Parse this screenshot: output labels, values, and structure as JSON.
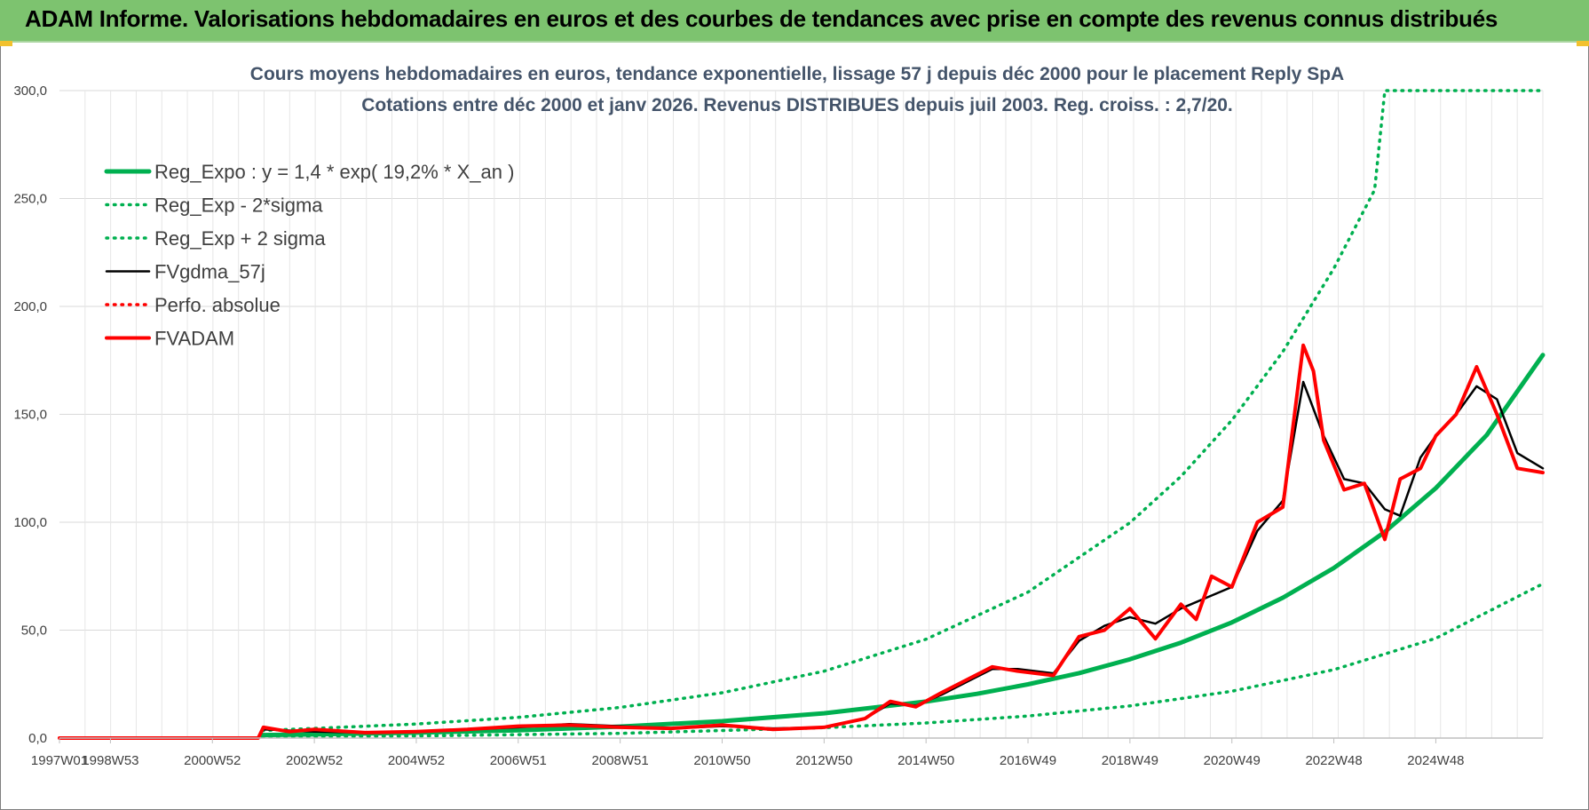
{
  "banner": {
    "title": "ADAM Informe. Valorisations hebdomadaires en euros et des courbes de tendances avec prise en compte des revenus connus distribués"
  },
  "colors": {
    "banner_bg": "#7dc36f",
    "green": "#00b050",
    "red": "#ff0000",
    "black": "#000000",
    "title": "#44546a",
    "grid": "#d9d9d9"
  },
  "chart_data": {
    "type": "line",
    "title": "Cours moyens hebdomadaires en euros, tendance exponentielle, lissage 57 j depuis déc 2000 pour le placement Reply SpA",
    "subtitle": "Cotations entre déc 2000 et janv 2026.  Revenus DISTRIBUES depuis juil 2003.  Reg. croiss. : 2,7/20.",
    "xlabel": "",
    "ylabel": "",
    "ylim": [
      0,
      300
    ],
    "y_ticks": [
      "0,0",
      "50,0",
      "100,0",
      "150,0",
      "200,0",
      "250,0",
      "300,0"
    ],
    "x_ticks": [
      "1997W01",
      "1998W53",
      "2000W52",
      "2002W52",
      "2004W52",
      "2006W51",
      "2008W51",
      "2010W50",
      "2012W50",
      "2014W50",
      "2016W49",
      "2018W49",
      "2020W49",
      "2022W48",
      "2024W48"
    ],
    "xlim": [
      1997.0,
      2026.1
    ],
    "grid": true,
    "legend_position": "top-left",
    "series": [
      {
        "name": "Reg_Expo : y = 1,4 * exp( 19,2% *  X_an )",
        "style": "solid",
        "color": "#00b050",
        "x": [
          2000.98,
          2002,
          2004,
          2006,
          2008,
          2010,
          2012,
          2014,
          2015,
          2016,
          2017,
          2018,
          2019,
          2020,
          2021,
          2022,
          2023,
          2024,
          2025,
          2026.1
        ],
        "y": [
          1.4,
          1.7,
          2.5,
          3.6,
          5.3,
          7.8,
          11.5,
          16.9,
          20.5,
          24.9,
          30.1,
          36.5,
          44.2,
          53.6,
          65.0,
          78.8,
          95.5,
          115.8,
          140.4,
          177.5
        ]
      },
      {
        "name": "Reg_Exp - 2*sigma",
        "style": "dotted",
        "color": "#00b050",
        "x": [
          2000.98,
          2004,
          2008,
          2012,
          2014,
          2016,
          2018,
          2020,
          2022,
          2024,
          2026.1
        ],
        "y": [
          0.6,
          1.0,
          2.2,
          4.8,
          7.0,
          10.2,
          14.9,
          21.7,
          31.7,
          46.2,
          71.5
        ]
      },
      {
        "name": "Reg_Exp + 2 sigma",
        "style": "dotted",
        "color": "#00b050",
        "x": [
          2000.98,
          2002,
          2004,
          2006,
          2008,
          2010,
          2012,
          2014,
          2016,
          2018,
          2019,
          2020,
          2021,
          2022,
          2022.8,
          2023,
          2026.1
        ],
        "y": [
          3.5,
          4.5,
          6.5,
          9.6,
          14.2,
          21.0,
          31.0,
          45.8,
          67.6,
          99.8,
          121.2,
          147.3,
          179.0,
          217.6,
          254.0,
          300.0,
          300.0
        ]
      },
      {
        "name": "FVgdma_57j",
        "style": "solid",
        "color": "#000000",
        "x": [
          1997.0,
          2000.9,
          2001.0,
          2001.5,
          2002,
          2003,
          2004,
          2005,
          2006,
          2007,
          2008,
          2009,
          2010,
          2011,
          2012,
          2012.8,
          2013.3,
          2013.8,
          2014.3,
          2014.8,
          2015.3,
          2015.8,
          2016.5,
          2017,
          2017.5,
          2018,
          2018.5,
          2019,
          2019.5,
          2020,
          2020.5,
          2021,
          2021.4,
          2021.8,
          2022.2,
          2022.6,
          2023,
          2023.3,
          2023.7,
          2024,
          2024.4,
          2024.8,
          2025.2,
          2025.6,
          2026.1
        ],
        "y": [
          0,
          0,
          4.0,
          3.5,
          3.0,
          2.5,
          3.0,
          4.0,
          5.0,
          6.5,
          5.5,
          4.5,
          5.5,
          4.5,
          5.0,
          9.0,
          16.0,
          15.0,
          20.0,
          26.0,
          32.0,
          32.0,
          30.0,
          45.0,
          52.0,
          56.0,
          53.0,
          60.0,
          65.0,
          70.0,
          96.0,
          110.0,
          165.0,
          140.0,
          120.0,
          118.0,
          106.0,
          103.0,
          130.0,
          140.0,
          150.0,
          163.0,
          157.0,
          132.0,
          125.0
        ]
      },
      {
        "name": "Perfo. absolue",
        "style": "dotted",
        "color": "#ff0000",
        "x": [],
        "y": []
      },
      {
        "name": "FVADAM",
        "style": "solid",
        "color": "#ff0000",
        "x": [
          1997.0,
          2000.9,
          2001.0,
          2001.5,
          2002,
          2003,
          2004,
          2005,
          2006,
          2007,
          2008,
          2009,
          2010,
          2011,
          2012,
          2012.8,
          2013.3,
          2013.8,
          2014.3,
          2014.8,
          2015.3,
          2015.8,
          2016.5,
          2017,
          2017.5,
          2018,
          2018.5,
          2019,
          2019.3,
          2019.6,
          2020,
          2020.5,
          2021,
          2021.4,
          2021.6,
          2021.8,
          2022.2,
          2022.6,
          2023,
          2023.3,
          2023.7,
          2024,
          2024.4,
          2024.8,
          2025.2,
          2025.6,
          2026.1
        ],
        "y": [
          0,
          0,
          5.0,
          3.0,
          4.0,
          2.5,
          3.0,
          4.0,
          5.5,
          6.0,
          5.0,
          4.5,
          6.0,
          4.0,
          5.0,
          9.0,
          17.0,
          14.5,
          21.0,
          27.0,
          33.0,
          31.0,
          29.0,
          47.0,
          50.0,
          60.0,
          46.0,
          62.0,
          55.0,
          75.0,
          70.0,
          100.0,
          107.0,
          182.0,
          170.0,
          138.0,
          115.0,
          118.0,
          92.0,
          120.0,
          125.0,
          140.0,
          150.0,
          172.0,
          150.0,
          125.0,
          123.0
        ]
      }
    ]
  }
}
